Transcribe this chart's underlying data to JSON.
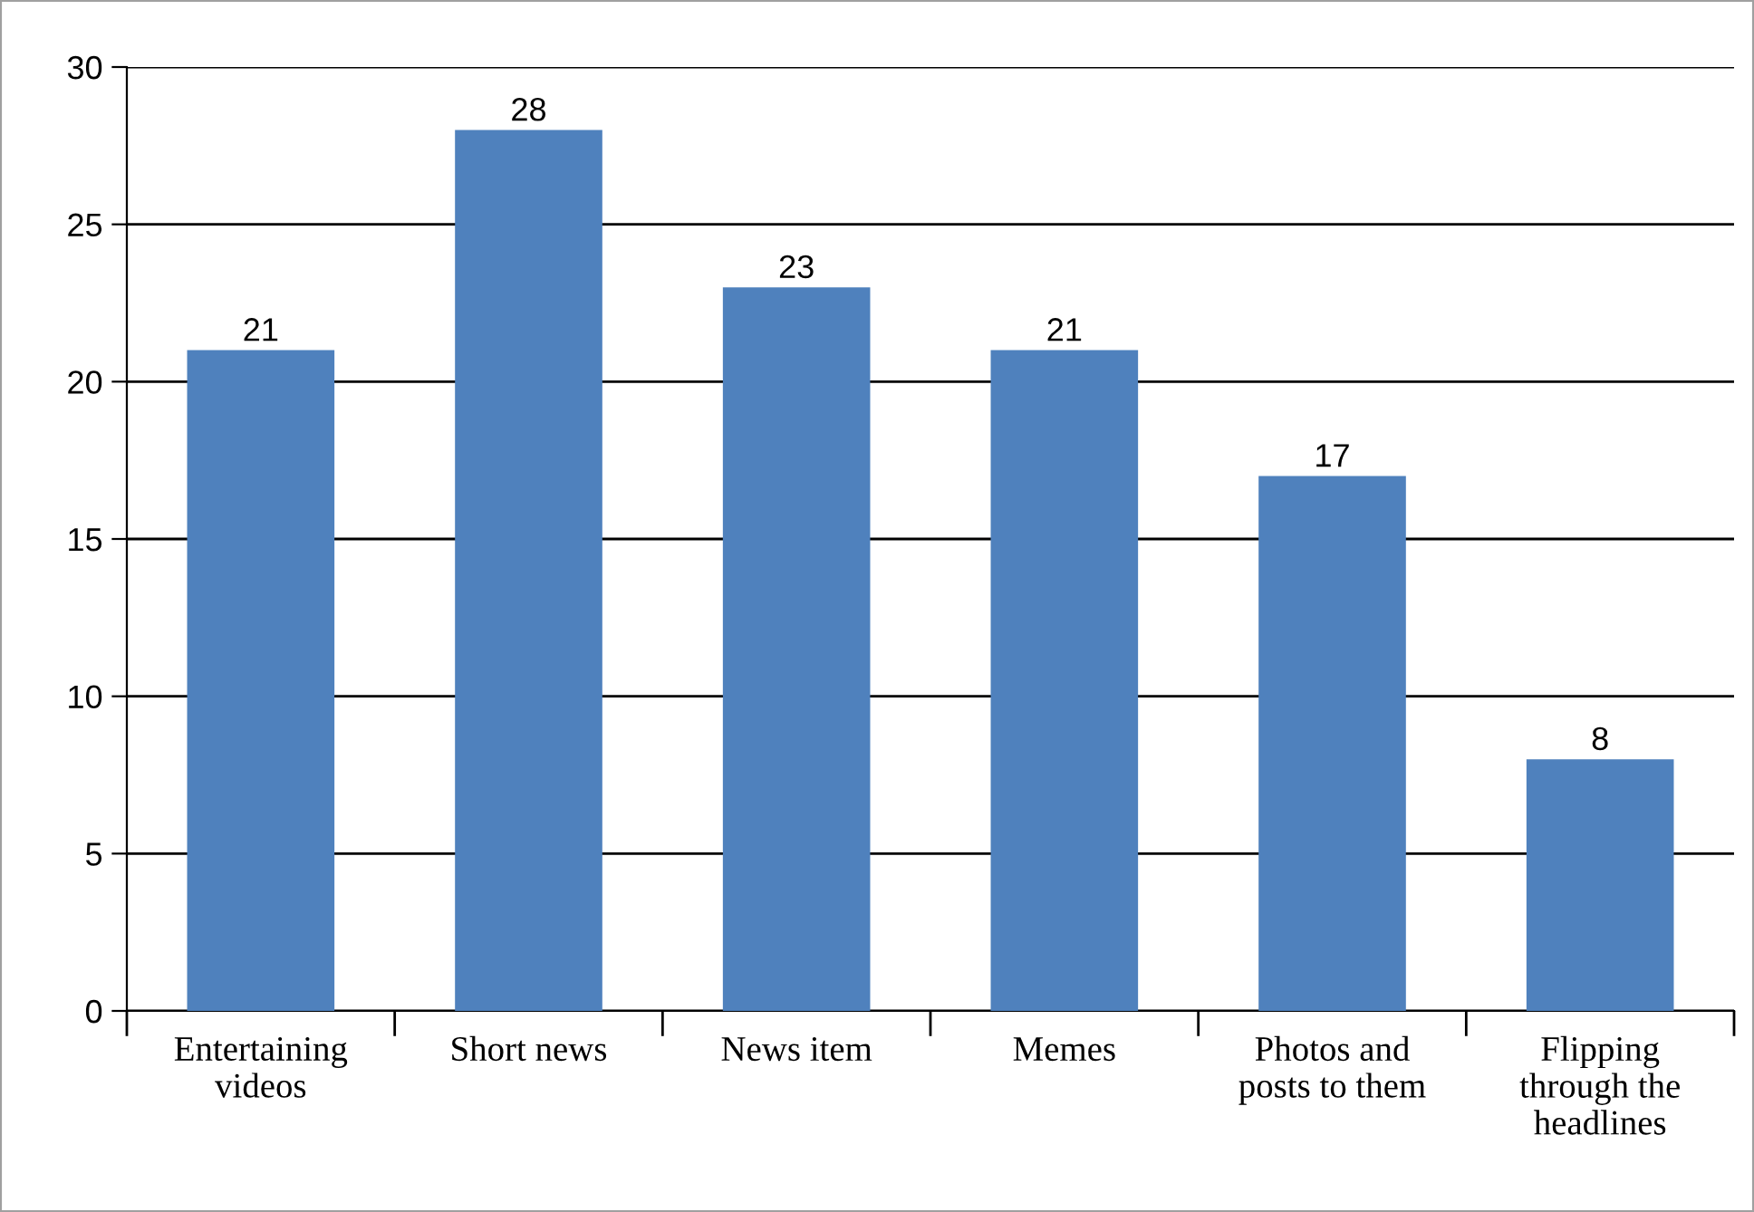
{
  "chart_data": {
    "type": "bar",
    "categories": [
      "Entertaining\nvideos",
      "Short news",
      "News item",
      "Memes",
      "Photos and\nposts to them",
      "Flipping\nthrough the\nheadlines"
    ],
    "values": [
      21,
      28,
      23,
      21,
      17,
      8
    ],
    "color": "#4f81bd",
    "ylim": [
      0,
      30
    ],
    "yticks": [
      0,
      5,
      10,
      15,
      20,
      25,
      30
    ],
    "grid": "y",
    "data_labels": true,
    "legend": false
  }
}
